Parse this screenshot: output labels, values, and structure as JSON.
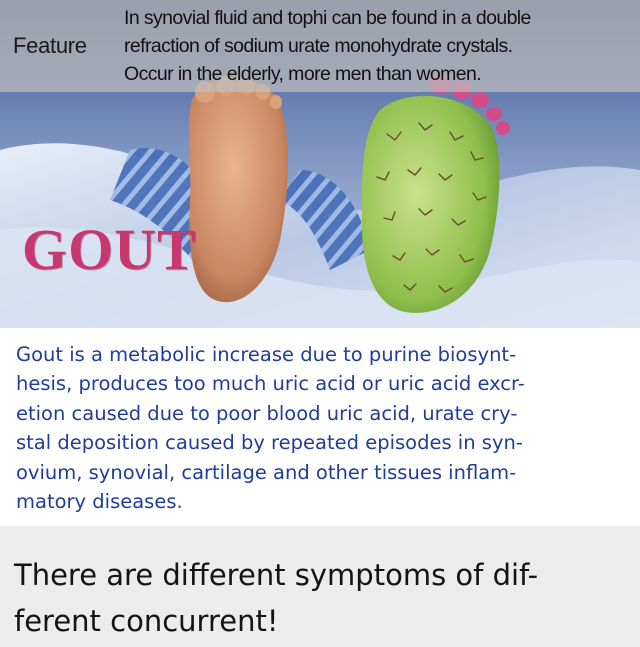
{
  "feature": {
    "label": "Feature",
    "lines": [
      "In synovial fluid and tophi can be found in a double",
      "refraction of sodium urate monohydrate crystals.",
      "Occur in the elderly, more men than women."
    ]
  },
  "hero": {
    "title": "GOUT",
    "title_color": "#c7386f"
  },
  "description": {
    "color": "#1f3d9a",
    "lines": [
      "Gout is a metabolic increase due to purine biosynt-",
      "hesis, produces too much uric acid or uric acid excr-",
      "etion caused due to poor blood uric acid, urate cry-",
      "stal deposition caused by repeated episodes in syn-",
      "ovium, synovial, cartilage and other tissues inflam-",
      "matory diseases."
    ]
  },
  "symptoms": {
    "lines": [
      "There are different symptoms of dif-",
      "ferent concurrent!"
    ]
  }
}
